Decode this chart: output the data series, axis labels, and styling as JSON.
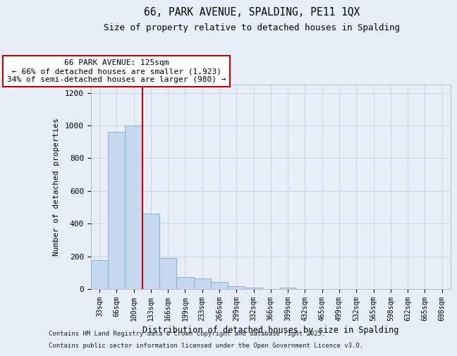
{
  "title1": "66, PARK AVENUE, SPALDING, PE11 1QX",
  "title2": "Size of property relative to detached houses in Spalding",
  "xlabel": "Distribution of detached houses by size in Spalding",
  "ylabel": "Number of detached properties",
  "categories": [
    "33sqm",
    "66sqm",
    "100sqm",
    "133sqm",
    "166sqm",
    "199sqm",
    "233sqm",
    "266sqm",
    "299sqm",
    "332sqm",
    "366sqm",
    "399sqm",
    "432sqm",
    "465sqm",
    "499sqm",
    "532sqm",
    "565sqm",
    "598sqm",
    "632sqm",
    "665sqm",
    "698sqm"
  ],
  "values": [
    175,
    960,
    1000,
    460,
    190,
    75,
    65,
    45,
    18,
    7,
    0,
    8,
    0,
    0,
    0,
    0,
    0,
    0,
    0,
    0,
    0
  ],
  "bar_color": "#c5d8ef",
  "bar_edge_color": "#7aadd4",
  "red_line_index": 2.5,
  "annotation_line1": "66 PARK AVENUE: 125sqm",
  "annotation_line2": "← 66% of detached houses are smaller (1,923)",
  "annotation_line3": "34% of semi-detached houses are larger (980) →",
  "annotation_box_color": "#ffffff",
  "annotation_box_edge": "#cc0000",
  "red_line_color": "#cc0000",
  "grid_color": "#c8d4e8",
  "ylim": [
    0,
    1250
  ],
  "yticks": [
    0,
    200,
    400,
    600,
    800,
    1000,
    1200
  ],
  "footer1": "Contains HM Land Registry data © Crown copyright and database right 2025.",
  "footer2": "Contains public sector information licensed under the Open Government Licence v3.0.",
  "bg_color": "#e8eef8"
}
